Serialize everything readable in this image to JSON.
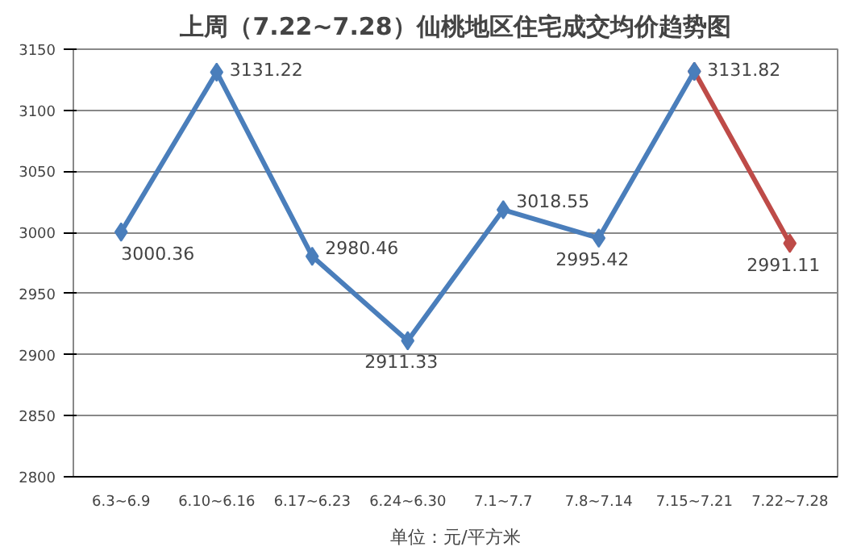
{
  "chart_data": {
    "type": "line",
    "title": "上周（7.22~7.28）仙桃地区住宅成交均价趋势图",
    "categories": [
      "6.3~6.9",
      "6.10~6.16",
      "6.17~6.23",
      "6.24~6.30",
      "7.1~7.7",
      "7.8~7.14",
      "7.15~7.21",
      "7.22~7.28"
    ],
    "series": [
      {
        "color": "#4a7ebb",
        "values": [
          3000.36,
          3131.22,
          2980.46,
          2911.33,
          3018.55,
          2995.42,
          3131.82,
          null
        ],
        "value_labels": [
          "3000.36",
          "3131.22",
          "2980.46",
          "2911.33",
          "3018.55",
          "2995.42",
          "3131.82",
          null
        ]
      },
      {
        "color": "#be4b48",
        "values": [
          null,
          null,
          null,
          null,
          null,
          null,
          3131.82,
          2991.11
        ],
        "value_labels": [
          null,
          null,
          null,
          null,
          null,
          null,
          null,
          "2991.11"
        ]
      }
    ],
    "ylim": [
      2800,
      3150
    ],
    "yticks": [
      2800,
      2850,
      2900,
      2950,
      3000,
      3050,
      3100,
      3150
    ],
    "grid": "y",
    "marker": "diamond",
    "line_style": "solid",
    "annotations": [
      "单位：元/平方米"
    ]
  }
}
